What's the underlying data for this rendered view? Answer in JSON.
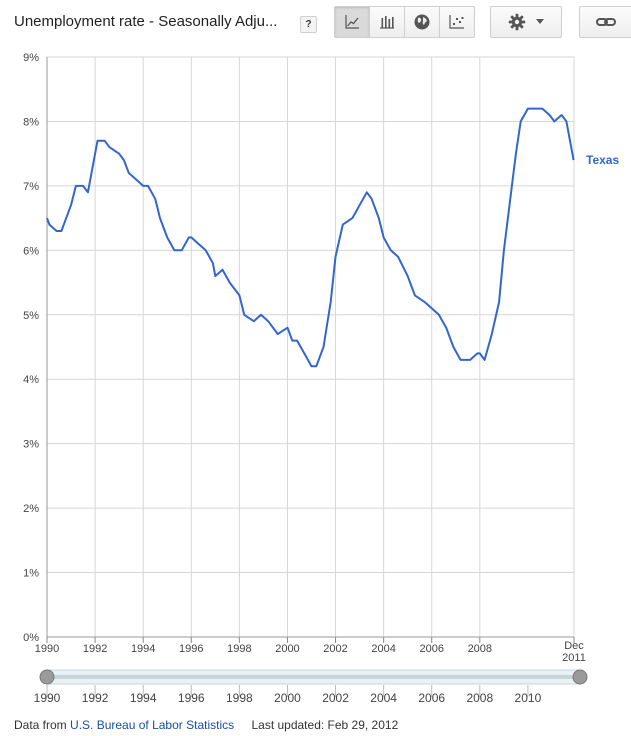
{
  "header": {
    "title": "Unemployment rate - Seasonally Adju...",
    "help_label": "?"
  },
  "toolbar": {
    "views": [
      {
        "name": "line-chart-icon",
        "active": true
      },
      {
        "name": "bar-chart-icon",
        "active": false
      },
      {
        "name": "map-globe-icon",
        "active": false
      },
      {
        "name": "scatter-chart-icon",
        "active": false
      }
    ]
  },
  "footer": {
    "prefix": "Data from",
    "source_link": "U.S. Bureau of Labor Statistics",
    "updated": "Last updated: Feb 29, 2012"
  },
  "chart_data": {
    "type": "line",
    "title": "",
    "xlabel": "",
    "ylabel": "",
    "xlim": [
      1990,
      2011.917
    ],
    "ylim": [
      0,
      9
    ],
    "y_ticks": [
      "0%",
      "1%",
      "2%",
      "3%",
      "4%",
      "5%",
      "6%",
      "7%",
      "8%",
      "9%"
    ],
    "x_ticks": [
      "1990",
      "1992",
      "1994",
      "1996",
      "1998",
      "2000",
      "2002",
      "2004",
      "2006",
      "2008"
    ],
    "x_end_label": [
      "Dec",
      "2011"
    ],
    "grid": true,
    "legend": "right, inline at line end",
    "series": [
      {
        "name": "Texas",
        "color": "#3366cc",
        "x": [
          1990.0,
          1990.1,
          1990.4,
          1990.6,
          1991.0,
          1991.2,
          1991.5,
          1991.7,
          1992.0,
          1992.1,
          1992.4,
          1992.6,
          1993.0,
          1993.2,
          1993.4,
          1993.7,
          1994.0,
          1994.2,
          1994.5,
          1994.7,
          1995.0,
          1995.3,
          1995.6,
          1995.9,
          1996.0,
          1996.3,
          1996.6,
          1996.9,
          1997.0,
          1997.3,
          1997.6,
          1998.0,
          1998.2,
          1998.6,
          1998.9,
          1999.2,
          1999.6,
          2000.0,
          2000.2,
          2000.4,
          2000.7,
          2001.0,
          2001.2,
          2001.5,
          2001.8,
          2002.0,
          2002.3,
          2002.7,
          2003.0,
          2003.3,
          2003.5,
          2003.8,
          2004.0,
          2004.3,
          2004.6,
          2005.0,
          2005.3,
          2005.7,
          2006.0,
          2006.3,
          2006.6,
          2006.9,
          2007.2,
          2007.6,
          2007.9,
          2008.0,
          2008.2,
          2008.5,
          2008.8,
          2009.0,
          2009.3,
          2009.5,
          2009.7,
          2010.0,
          2010.3,
          2010.6,
          2010.9,
          2011.1,
          2011.4,
          2011.6,
          2011.9
        ],
        "y": [
          6.5,
          6.4,
          6.3,
          6.3,
          6.7,
          7.0,
          7.0,
          6.9,
          7.5,
          7.7,
          7.7,
          7.6,
          7.5,
          7.4,
          7.2,
          7.1,
          7.0,
          7.0,
          6.8,
          6.5,
          6.2,
          6.0,
          6.0,
          6.2,
          6.2,
          6.1,
          6.0,
          5.8,
          5.6,
          5.7,
          5.5,
          5.3,
          5.0,
          4.9,
          5.0,
          4.9,
          4.7,
          4.8,
          4.6,
          4.6,
          4.4,
          4.2,
          4.2,
          4.5,
          5.2,
          5.9,
          6.4,
          6.5,
          6.7,
          6.9,
          6.8,
          6.5,
          6.2,
          6.0,
          5.9,
          5.6,
          5.3,
          5.2,
          5.1,
          5.0,
          4.8,
          4.5,
          4.3,
          4.3,
          4.4,
          4.4,
          4.3,
          4.7,
          5.2,
          6.0,
          6.9,
          7.5,
          8.0,
          8.2,
          8.2,
          8.2,
          8.1,
          8.0,
          8.1,
          8.0,
          7.4
        ]
      }
    ]
  },
  "range_slider": {
    "labels": [
      "1990",
      "1992",
      "1994",
      "1996",
      "1998",
      "2000",
      "2002",
      "2004",
      "2006",
      "2008",
      "2010"
    ]
  }
}
